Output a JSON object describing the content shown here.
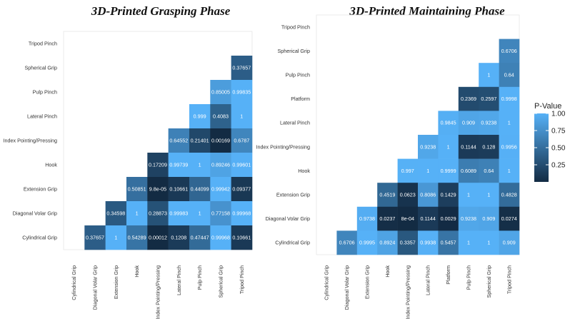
{
  "legend": {
    "title": "P-Value",
    "ticks": [
      "1.00",
      "0.75",
      "0.50",
      "0.25"
    ],
    "tick_values": [
      1.0,
      0.75,
      0.5,
      0.25
    ],
    "range": [
      0,
      1
    ],
    "low_color": "#132b43",
    "high_color": "#56b1f7"
  },
  "chart_data": [
    {
      "type": "heatmap",
      "title": "3D-Printed Grasping Phase",
      "x_labels": [
        "Cylindrical Grip",
        "Diagonal Volar Grip",
        "Extension Grip",
        "Hook",
        "Index Pointing/Pressing",
        "Lateral Pinch",
        "Pulp Pinch",
        "Spherical Grip",
        "Tripod Pinch"
      ],
      "y_labels": [
        "Tripod Pinch",
        "Spherical Grip",
        "Pulp Pinch",
        "Lateral Pinch",
        "Index Pointing/Pressing",
        "Hook",
        "Extension Grip",
        "Diagonal Volar Grip",
        "Cylindrical Grip"
      ],
      "rows": [
        [
          null,
          null,
          null,
          null,
          null,
          null,
          null,
          null,
          null
        ],
        [
          null,
          null,
          null,
          null,
          null,
          null,
          null,
          null,
          "0.37657"
        ],
        [
          null,
          null,
          null,
          null,
          null,
          null,
          null,
          "0.85005",
          "0.99835"
        ],
        [
          null,
          null,
          null,
          null,
          null,
          null,
          "0.999",
          "0.4083",
          "1"
        ],
        [
          null,
          null,
          null,
          null,
          null,
          "0.64552",
          "0.21401",
          "0.00169",
          "0.6787"
        ],
        [
          null,
          null,
          null,
          null,
          "0.17209",
          "0.99739",
          "1",
          "0.89246",
          "0.99601"
        ],
        [
          null,
          null,
          null,
          "0.50851",
          "9.8e-05",
          "0.10661",
          "0.44099",
          "0.99942",
          "0.09377"
        ],
        [
          null,
          null,
          "0.34598",
          "1",
          "0.28873",
          "0.99983",
          "1",
          "0.77158",
          "0.99968"
        ],
        [
          null,
          "0.37657",
          "1",
          "0.54289",
          "0.00012",
          "0.1208",
          "0.47447",
          "0.99968",
          "0.10661"
        ]
      ]
    },
    {
      "type": "heatmap",
      "title": "3D-Printed Maintaining Phase",
      "x_labels": [
        "Cylindrical Grip",
        "Diagonal Volar Grip",
        "Extension Grip",
        "Hook",
        "Index Pointing/Pressing",
        "Lateral Pinch",
        "Platform",
        "Pulp Pinch",
        "Spherical Grip",
        "Tripod Pinch"
      ],
      "y_labels": [
        "Tripod Pinch",
        "Spherical Grip",
        "Pulp Pinch",
        "Platform",
        "Lateral Pinch",
        "Index Pointing/Pressing",
        "Hook",
        "Extension Grip",
        "Diagonal Volar Grip",
        "Cylindrical Grip"
      ],
      "rows": [
        [
          null,
          null,
          null,
          null,
          null,
          null,
          null,
          null,
          null,
          null
        ],
        [
          null,
          null,
          null,
          null,
          null,
          null,
          null,
          null,
          null,
          "0.6706"
        ],
        [
          null,
          null,
          null,
          null,
          null,
          null,
          null,
          null,
          "1",
          "0.64"
        ],
        [
          null,
          null,
          null,
          null,
          null,
          null,
          null,
          "0.2369",
          "0.2597",
          "0.9998"
        ],
        [
          null,
          null,
          null,
          null,
          null,
          null,
          "0.9845",
          "0.909",
          "0.9238",
          "1"
        ],
        [
          null,
          null,
          null,
          null,
          null,
          "0.9238",
          "1",
          "0.1144",
          "0.128",
          "0.9956"
        ],
        [
          null,
          null,
          null,
          null,
          "0.997",
          "1",
          "0.9999",
          "0.6089",
          "0.64",
          "1"
        ],
        [
          null,
          null,
          null,
          "0.4519",
          "0.0623",
          "0.8086",
          "0.1429",
          "1",
          "1",
          "0.4828"
        ],
        [
          null,
          null,
          "0.9738",
          "0.0237",
          "8e-04",
          "0.1144",
          "0.0029",
          "0.9238",
          "0.909",
          "0.0274"
        ],
        [
          null,
          "0.6706",
          "0.9995",
          "0.8924",
          "0.3357",
          "0.9938",
          "0.5457",
          "1",
          "1",
          "0.909"
        ]
      ]
    }
  ]
}
